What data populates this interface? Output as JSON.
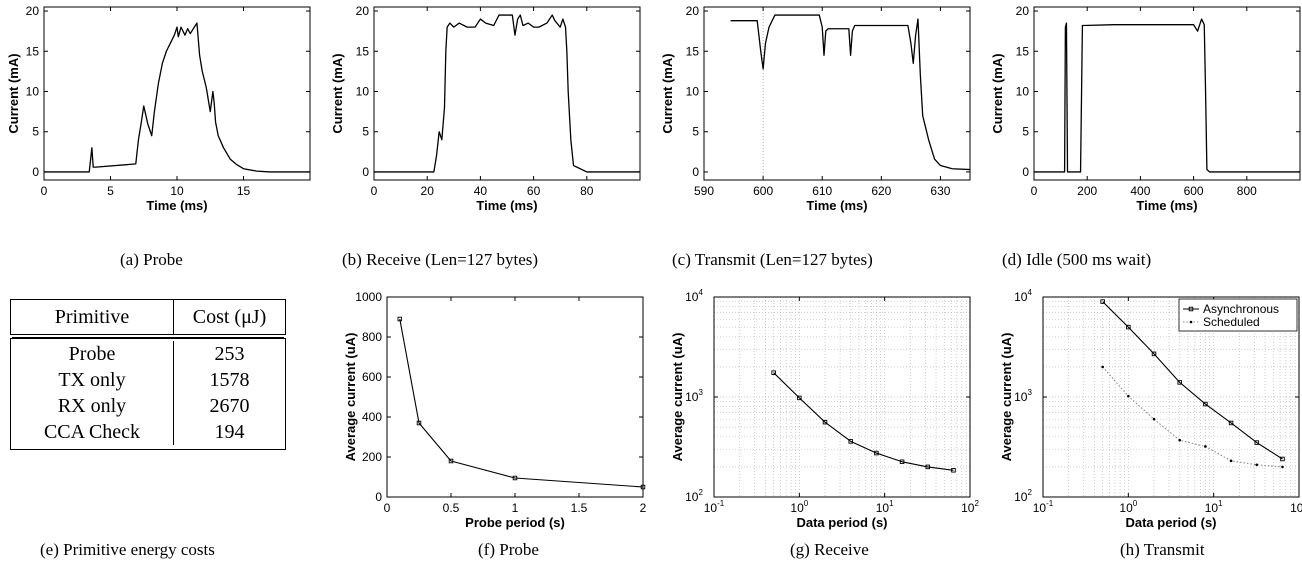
{
  "captions": {
    "a": "(a) Probe",
    "b": "(b) Receive (Len=127 bytes)",
    "c": "(c) Transmit (Len=127 bytes)",
    "d": "(d) Idle (500 ms wait)",
    "e": "(e) Primitive energy costs",
    "f": "(f) Probe",
    "g": "(g) Receive",
    "h": "(h) Transmit"
  },
  "table": {
    "headers": [
      "Primitive",
      "Cost (μJ)"
    ],
    "rows": [
      [
        "Probe",
        "253"
      ],
      [
        "TX only",
        "1578"
      ],
      [
        "RX only",
        "2670"
      ],
      [
        "CCA Check",
        "194"
      ]
    ]
  },
  "colors": {
    "trace": "#000000",
    "grid": "#bbbbbb",
    "dotted_series": "#888888"
  },
  "chart_data": [
    {
      "id": "a",
      "type": "line",
      "xlabel": "Time (ms)",
      "ylabel": "Current (mA)",
      "xlim": [
        0,
        20
      ],
      "ylim": [
        -1,
        20.5
      ],
      "xticks": [
        0,
        5,
        10,
        15
      ],
      "yticks": [
        0,
        5,
        10,
        15,
        20
      ],
      "x": [
        0,
        3.4,
        3.6,
        3.7,
        3.9,
        6.9,
        7.1,
        7.3,
        7.5,
        7.8,
        8.1,
        8.3,
        8.6,
        8.9,
        9.2,
        9.5,
        9.8,
        10.0,
        10.1,
        10.3,
        10.6,
        10.8,
        11.0,
        11.3,
        11.5,
        11.7,
        11.9,
        12.2,
        12.5,
        12.7,
        12.8,
        12.9,
        13.1,
        13.5,
        14.0,
        14.5,
        15.0,
        16.0,
        17.0,
        20.0
      ],
      "y": [
        0,
        0,
        3.0,
        0.6,
        0.6,
        1.0,
        4.0,
        6.0,
        8.2,
        6.0,
        4.5,
        7.5,
        11.0,
        13.5,
        15.0,
        16.0,
        17.0,
        18.0,
        16.8,
        18.0,
        17.0,
        17.8,
        17.2,
        18.0,
        18.5,
        14.5,
        12.5,
        10.5,
        7.5,
        10.0,
        8.5,
        6.2,
        4.5,
        3.0,
        1.6,
        0.9,
        0.4,
        0.1,
        0,
        0
      ]
    },
    {
      "id": "b",
      "type": "line",
      "xlabel": "Time (ms)",
      "ylabel": "Current (mA)",
      "xlim": [
        0,
        100
      ],
      "ylim": [
        -1,
        20.5
      ],
      "xticks": [
        0,
        20,
        40,
        60,
        80
      ],
      "yticks": [
        0,
        5,
        10,
        15,
        20
      ],
      "x": [
        0,
        22.5,
        23.5,
        24.5,
        25.5,
        26.5,
        27.0,
        27.5,
        28.5,
        30.0,
        32.0,
        35.0,
        38.0,
        40.0,
        42.0,
        45.0,
        47.0,
        50.0,
        52.0,
        53.0,
        54.0,
        55.0,
        56.0,
        58.0,
        60.0,
        62.0,
        65.0,
        67.0,
        68.0,
        70.0,
        71.0,
        72.0,
        72.5,
        73.0,
        74.0,
        75.0,
        80.0,
        100.0
      ],
      "y": [
        0,
        0,
        2.0,
        5.0,
        4.0,
        8.0,
        15.0,
        18.0,
        18.5,
        18.0,
        18.5,
        18.0,
        18.0,
        19.0,
        18.5,
        18.2,
        19.5,
        19.5,
        19.5,
        17.0,
        19.0,
        19.5,
        18.2,
        18.5,
        18.0,
        18.0,
        18.5,
        19.5,
        18.8,
        18.0,
        19.0,
        18.0,
        15.0,
        10.0,
        4.0,
        0.8,
        0,
        0
      ]
    },
    {
      "id": "c",
      "type": "line",
      "xlabel": "Time (ms)",
      "ylabel": "Current (mA)",
      "xlim": [
        590,
        635
      ],
      "ylim": [
        -1,
        20.5
      ],
      "xticks": [
        590,
        600,
        610,
        620,
        630
      ],
      "yticks": [
        0,
        5,
        10,
        15,
        20
      ],
      "vline_x": 600,
      "x": [
        594.5,
        599,
        599.6,
        600,
        600.4,
        601,
        602,
        605,
        609.5,
        610,
        610.3,
        610.6,
        611,
        614.5,
        614.8,
        615.1,
        615.5,
        620,
        624.5,
        625,
        625.4,
        625.8,
        626.2,
        626.6,
        627,
        628,
        629,
        630,
        632,
        635
      ],
      "y": [
        18.8,
        18.8,
        15.0,
        12.8,
        16.0,
        18.0,
        19.5,
        19.5,
        19.5,
        18.0,
        14.5,
        17.5,
        17.8,
        17.8,
        14.5,
        17.5,
        18.2,
        18.2,
        18.2,
        16.0,
        13.5,
        17.0,
        19.0,
        12.0,
        7.0,
        4.0,
        1.6,
        0.8,
        0.4,
        0.3
      ]
    },
    {
      "id": "d",
      "type": "line",
      "xlabel": "Time (ms)",
      "ylabel": "Current (mA)",
      "xlim": [
        0,
        1000
      ],
      "ylim": [
        -1,
        20.5
      ],
      "xticks": [
        0,
        200,
        400,
        600,
        800
      ],
      "yticks": [
        0,
        5,
        10,
        15,
        20
      ],
      "x": [
        0,
        115,
        118,
        122,
        126,
        130,
        175,
        182,
        188,
        300,
        450,
        600,
        615,
        630,
        640,
        645,
        650,
        660,
        1000
      ],
      "y": [
        0,
        0,
        18.0,
        18.5,
        0,
        0,
        0,
        18.2,
        18.2,
        18.3,
        18.3,
        18.3,
        17.5,
        19.0,
        18.3,
        10.0,
        0.3,
        0,
        0
      ]
    },
    {
      "id": "f",
      "type": "line",
      "xlabel": "Probe period (s)",
      "ylabel": "Average current (uA)",
      "xlim": [
        0,
        2
      ],
      "ylim": [
        0,
        1000
      ],
      "xticks": [
        0,
        0.5,
        1,
        1.5,
        2
      ],
      "yticks": [
        0,
        200,
        400,
        600,
        800,
        1000
      ],
      "x": [
        0.1,
        0.25,
        0.5,
        1.0,
        2.0
      ],
      "y": [
        890,
        370,
        180,
        95,
        50
      ]
    },
    {
      "id": "g",
      "type": "line",
      "xlabel": "Data period (s)",
      "ylabel": "Average current (uA)",
      "xscale": "log",
      "yscale": "log",
      "grid": true,
      "xlim": [
        0.1,
        100
      ],
      "ylim": [
        100,
        10000
      ],
      "x": [
        0.5,
        1,
        2,
        4,
        8,
        16,
        32,
        64
      ],
      "y": [
        1750,
        980,
        560,
        360,
        275,
        225,
        200,
        185
      ]
    },
    {
      "id": "h",
      "type": "line",
      "xlabel": "Data period (s)",
      "ylabel": "Average current (uA)",
      "xscale": "log",
      "yscale": "log",
      "grid": true,
      "xlim": [
        0.1,
        100
      ],
      "ylim": [
        100,
        10000
      ],
      "legend_position": "top-right",
      "series": [
        {
          "name": "Asynchronous",
          "style": "solid-square",
          "x": [
            0.5,
            1,
            2,
            4,
            8,
            16,
            32,
            64
          ],
          "y": [
            9000,
            5000,
            2700,
            1400,
            850,
            550,
            350,
            240
          ]
        },
        {
          "name": "Scheduled",
          "style": "dotted-dot",
          "x": [
            0.5,
            1,
            2,
            4,
            8,
            16,
            32,
            64
          ],
          "y": [
            2000,
            1020,
            600,
            370,
            320,
            230,
            210,
            200
          ]
        }
      ]
    }
  ]
}
